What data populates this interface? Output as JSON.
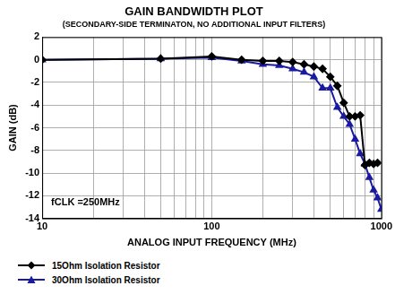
{
  "chart_data": {
    "type": "line",
    "title": "GAIN BANDWIDTH PLOT",
    "subtitle": "(SECONDARY-SIDE TERMINATON, NO ADDITIONAL INPUT FILTERS)",
    "x_label": "ANALOG INPUT FREQUENCY (MHz)",
    "y_label": "GAIN (dB)",
    "annotation": "fCLK =250MHz",
    "log": "x",
    "grid": true,
    "legend": "bottom",
    "xlim": [
      10,
      1000
    ],
    "xticks": [
      10,
      100,
      1000
    ],
    "ylim": [
      -14,
      2
    ],
    "yticks": [
      -14,
      -12,
      -10,
      -8,
      -6,
      -4,
      -2,
      0,
      2
    ],
    "x": [
      10,
      50,
      100,
      150,
      200,
      250,
      300,
      350,
      400,
      450,
      500,
      550,
      600,
      650,
      700,
      750,
      800,
      850,
      900,
      950,
      1000
    ],
    "series": [
      {
        "name": "15Ohm Isolation Resistor",
        "color": "#000000",
        "marker": "diamond",
        "values": [
          0,
          0.1,
          0.3,
          0,
          -0.1,
          -0.1,
          -0.2,
          -0.4,
          -0.6,
          -0.8,
          -1.5,
          -2.3,
          -3.8,
          -5.0,
          -5.0,
          -4.9,
          -9.3,
          -9.1,
          -9.2,
          -9.1,
          null
        ]
      },
      {
        "name": "30Ohm Isolation Resistor",
        "color": "#1a1aa0",
        "marker": "triangle",
        "values": [
          0,
          0.1,
          0.2,
          -0.1,
          -0.4,
          -0.5,
          -0.8,
          -1.1,
          -1.5,
          -2.5,
          -2.5,
          -4.2,
          -5.0,
          -5.7,
          -7.0,
          -8.3,
          -9.2,
          -10.4,
          -11.5,
          -12.2,
          -13.2
        ]
      }
    ]
  }
}
